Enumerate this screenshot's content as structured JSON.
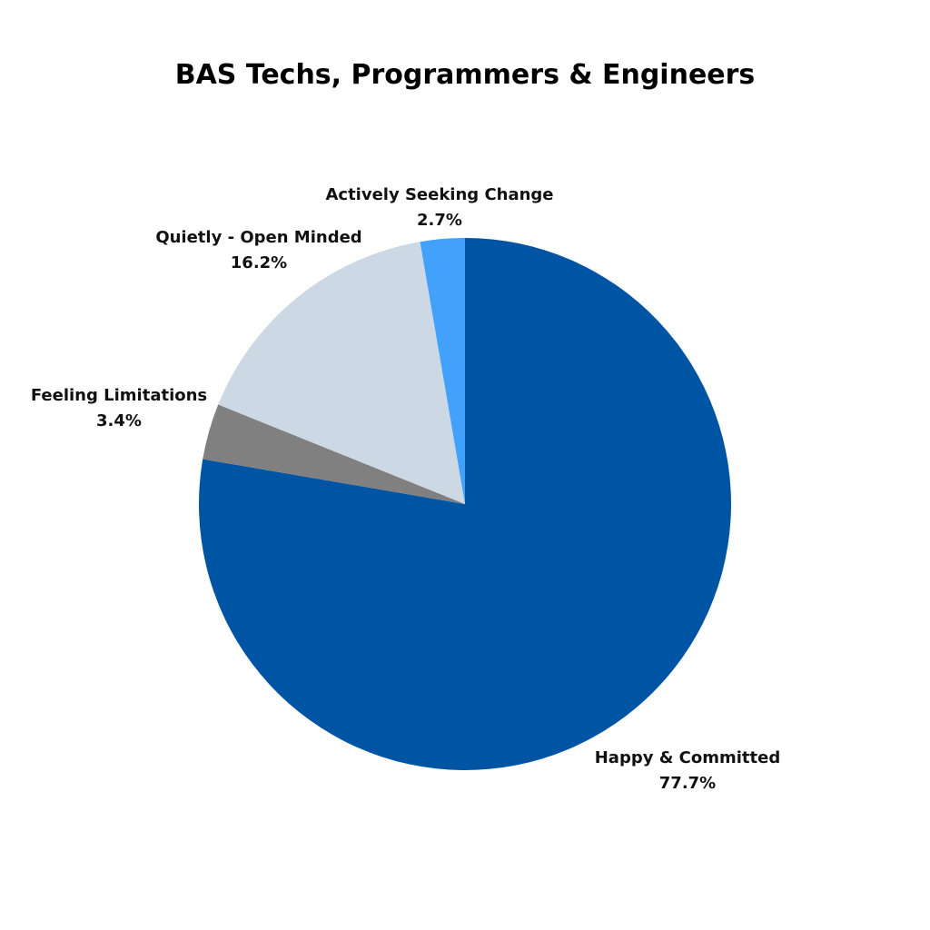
{
  "chart_data": {
    "type": "pie",
    "title": "BAS Techs, Programmers & Engineers",
    "start_angle_deg": 0,
    "direction": "clockwise",
    "legend": "none",
    "slices": [
      {
        "label": "Happy & Committed",
        "value": 77.7,
        "value_label": "77.7%",
        "color": "#0054A4"
      },
      {
        "label": "Feeling Limitations",
        "value": 3.4,
        "value_label": "3.4%",
        "color": "#808080"
      },
      {
        "label": "Quietly - Open Minded",
        "value": 16.2,
        "value_label": "16.2%",
        "color": "#CCD8E4"
      },
      {
        "label": "Actively Seeking Change",
        "value": 2.7,
        "value_label": "2.7%",
        "color": "#42A1FA"
      }
    ]
  }
}
